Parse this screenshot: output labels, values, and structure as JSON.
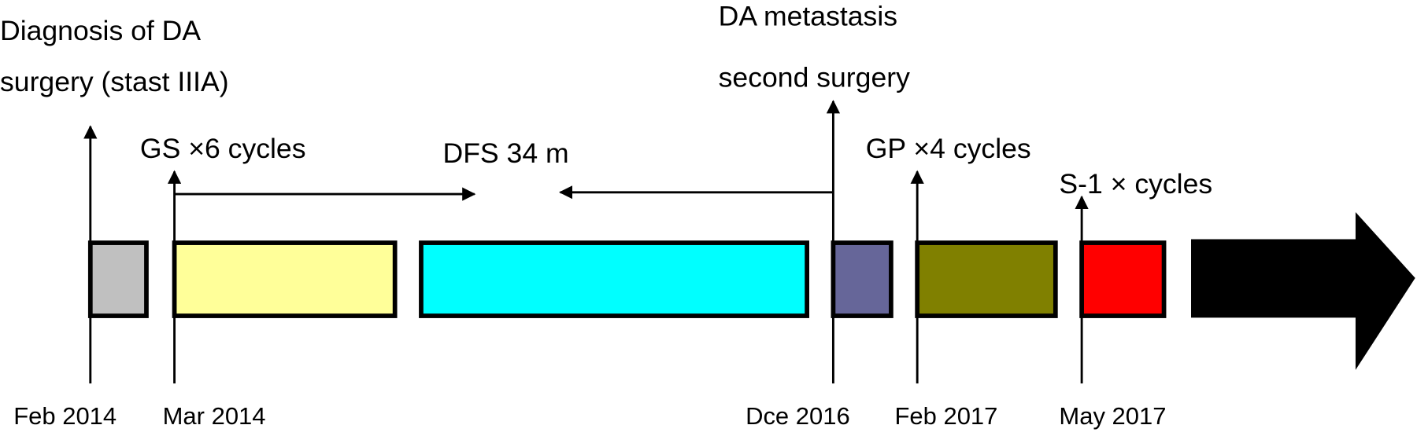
{
  "events": [
    {
      "label": [
        "Diagnosis of DA",
        "surgery (stast IIIA)"
      ],
      "date": "Feb 2014"
    },
    {
      "label": [
        "GS ×6 cycles"
      ],
      "date": "Mar 2014"
    },
    {
      "label": [
        "DFS 34 m"
      ]
    },
    {
      "label": [
        "DA metastasis",
        "second surgery"
      ],
      "date": "Dce 2016"
    },
    {
      "label": [
        "GP ×4 cycles"
      ],
      "date": "Feb 2017"
    },
    {
      "label": [
        "S-1 × cycles"
      ],
      "date": "May 2017"
    }
  ]
}
